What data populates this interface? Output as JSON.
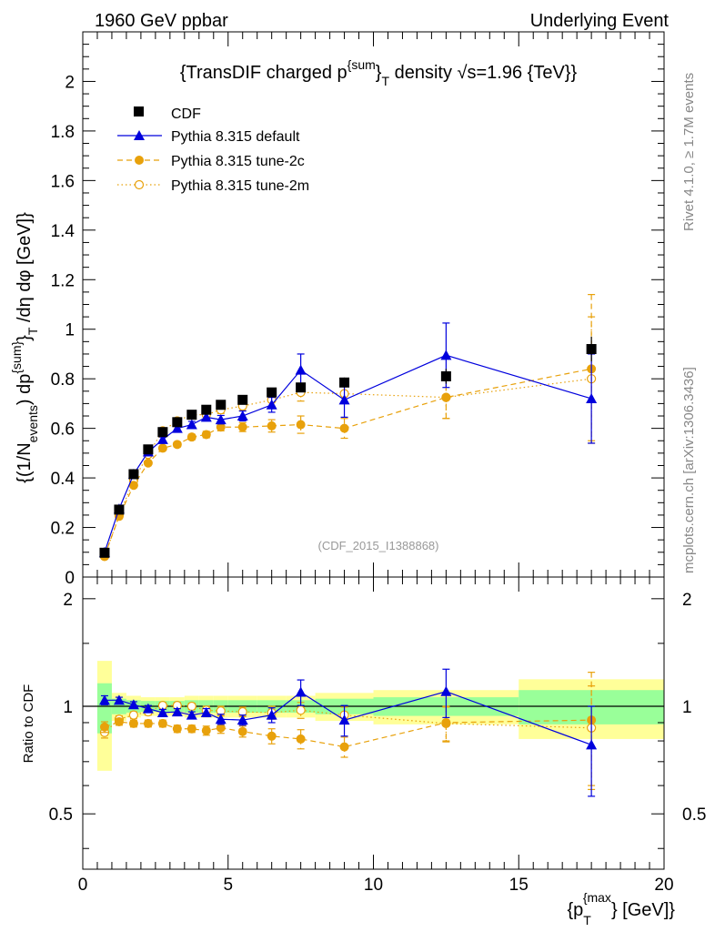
{
  "header": {
    "left": "1960 GeV ppbar",
    "right": "Underlying Event"
  },
  "side_labels": {
    "rivet": "Rivet 4.1.0, ≥ 1.7M events",
    "mcplots": "mcplots.cern.ch [arXiv:1306.3436]"
  },
  "chart_data": [
    {
      "type": "scatter",
      "panel": "main",
      "title": "{TransDIF charged p^{sum}_T density √s=1.96 {TeV}}",
      "title_parts": {
        "pre": "{TransDIF charged p",
        "sup": "{sum",
        "post1": "}",
        "sub": "T",
        "post2": " density √s=1.96 {TeV}}"
      },
      "watermark": "(CDF_2015_I1388868)",
      "ylabel": "{(1/N_events) dp^{sum}_T /dη dφ [GeV]}",
      "ylabel_parts": {
        "a": "{(1/N",
        "a_sub": "events",
        "b": ") dp",
        "b_sup": "{sum}",
        "c": "}",
        "c_sub": "T",
        "d": " /dη  dφ [GeV]}"
      },
      "xlim": [
        0,
        20
      ],
      "ylim": [
        0,
        2.2
      ],
      "yticks": [
        0,
        0.2,
        0.4,
        0.6,
        0.8,
        1,
        1.2,
        1.4,
        1.6,
        1.8,
        2
      ],
      "ytick_labels": [
        "0",
        "0.2",
        "0.4",
        "0.6",
        "0.8",
        "1",
        "1.2",
        "1.4",
        "1.6",
        "1.8",
        "2"
      ],
      "x": [
        0.75,
        1.25,
        1.75,
        2.25,
        2.75,
        3.25,
        3.75,
        4.25,
        4.75,
        5.5,
        6.5,
        7.5,
        9.0,
        12.5,
        17.5
      ],
      "series": [
        {
          "name": "CDF",
          "style": "data",
          "color": "#000000",
          "values": [
            0.098,
            0.272,
            0.415,
            0.515,
            0.585,
            0.625,
            0.655,
            0.675,
            0.695,
            0.715,
            0.745,
            0.765,
            0.785,
            0.81,
            0.92
          ],
          "errors": [
            0.005,
            0.006,
            0.008,
            0.008,
            0.009,
            0.01,
            0.01,
            0.011,
            0.012,
            0.013,
            0.015,
            0.018,
            0.02,
            0.03,
            0.05
          ]
        },
        {
          "name": "Pythia 8.315 default",
          "style": "triangle-solid",
          "color": "#0000dd",
          "values": [
            0.1,
            0.275,
            0.415,
            0.505,
            0.555,
            0.6,
            0.615,
            0.645,
            0.635,
            0.65,
            0.695,
            0.835,
            0.715,
            0.895,
            0.72
          ],
          "errors": [
            0.004,
            0.006,
            0.008,
            0.009,
            0.01,
            0.011,
            0.013,
            0.015,
            0.017,
            0.02,
            0.03,
            0.065,
            0.07,
            0.13,
            0.18
          ]
        },
        {
          "name": "Pythia 8.315 tune-2c",
          "style": "circle-dashed",
          "color": "#e8a10b",
          "values": [
            0.085,
            0.245,
            0.37,
            0.46,
            0.52,
            0.535,
            0.565,
            0.575,
            0.605,
            0.605,
            0.61,
            0.615,
            0.6,
            0.725,
            0.84
          ],
          "errors": [
            0.004,
            0.006,
            0.007,
            0.008,
            0.009,
            0.01,
            0.011,
            0.013,
            0.015,
            0.018,
            0.025,
            0.035,
            0.04,
            0.085,
            0.3
          ]
        },
        {
          "name": "Pythia 8.315 tune-2m",
          "style": "open-circle-dotted",
          "color": "#e8a10b",
          "values": [
            0.083,
            0.25,
            0.39,
            0.495,
            0.59,
            0.63,
            0.655,
            0.655,
            0.675,
            0.69,
            0.715,
            0.745,
            0.74,
            0.725,
            0.8
          ],
          "errors": [
            0.004,
            0.006,
            0.007,
            0.008,
            0.009,
            0.01,
            0.011,
            0.013,
            0.015,
            0.018,
            0.025,
            0.035,
            0.04,
            0.085,
            0.25
          ]
        }
      ],
      "legend": {
        "placement": "top-left",
        "entries": [
          "CDF",
          "Pythia 8.315 default",
          "Pythia 8.315 tune-2c",
          "Pythia 8.315 tune-2m"
        ]
      }
    },
    {
      "type": "scatter",
      "panel": "ratio",
      "ylabel": "Ratio to CDF",
      "xlabel": "{p_T^{max}} [GeV]}",
      "xlabel_parts": {
        "a": "{p",
        "a_sub": "T",
        "a_sup": "{max",
        "b": "} [GeV]}"
      },
      "xlim": [
        0,
        20
      ],
      "ylim": [
        0.35,
        2.3
      ],
      "yscale": "log",
      "xticks": [
        0,
        5,
        10,
        15,
        20
      ],
      "xtick_labels": [
        "0",
        "5",
        "10",
        "15",
        "20"
      ],
      "yticks": [
        0.5,
        1,
        2
      ],
      "ytick_labels": [
        "0.5",
        "1",
        "2"
      ],
      "reference_line": 1,
      "x": [
        0.75,
        1.25,
        1.75,
        2.25,
        2.75,
        3.25,
        3.75,
        4.25,
        4.75,
        5.5,
        6.5,
        7.5,
        9.0,
        12.5,
        17.5
      ],
      "bins": [
        [
          0.5,
          1.0
        ],
        [
          1.0,
          1.5
        ],
        [
          1.5,
          2.0
        ],
        [
          2.0,
          2.5
        ],
        [
          2.5,
          3.0
        ],
        [
          3.0,
          3.5
        ],
        [
          3.5,
          4.0
        ],
        [
          4.0,
          4.5
        ],
        [
          4.5,
          5.0
        ],
        [
          5.0,
          6.0
        ],
        [
          6.0,
          7.0
        ],
        [
          7.0,
          8.0
        ],
        [
          8.0,
          10.0
        ],
        [
          10.0,
          15.0
        ],
        [
          15.0,
          20.0
        ]
      ],
      "band_inner": [
        0.16,
        0.05,
        0.04,
        0.035,
        0.035,
        0.035,
        0.04,
        0.04,
        0.04,
        0.04,
        0.04,
        0.04,
        0.05,
        0.06,
        0.11
      ],
      "band_outer": [
        0.34,
        0.09,
        0.07,
        0.06,
        0.06,
        0.06,
        0.07,
        0.07,
        0.07,
        0.07,
        0.07,
        0.07,
        0.09,
        0.11,
        0.19
      ],
      "series": [
        {
          "name": "Pythia 8.315 default",
          "color": "#0000dd",
          "values": [
            1.04,
            1.04,
            1.01,
            0.985,
            0.96,
            0.965,
            0.945,
            0.96,
            0.92,
            0.915,
            0.945,
            1.095,
            0.915,
            1.1,
            0.78
          ],
          "errors": [
            0.03,
            0.02,
            0.02,
            0.02,
            0.02,
            0.02,
            0.02,
            0.025,
            0.03,
            0.03,
            0.045,
            0.09,
            0.09,
            0.17,
            0.22
          ]
        },
        {
          "name": "Pythia 8.315 tune-2c",
          "color": "#e8a10b",
          "values": [
            0.875,
            0.905,
            0.895,
            0.895,
            0.895,
            0.865,
            0.865,
            0.855,
            0.87,
            0.85,
            0.825,
            0.81,
            0.77,
            0.9,
            0.915
          ],
          "errors": [
            0.03,
            0.02,
            0.02,
            0.02,
            0.02,
            0.02,
            0.02,
            0.025,
            0.03,
            0.03,
            0.04,
            0.05,
            0.05,
            0.1,
            0.33
          ]
        },
        {
          "name": "Pythia 8.315 tune-2m",
          "color": "#e8a10b",
          "values": [
            0.845,
            0.92,
            0.945,
            0.965,
            1.005,
            1.005,
            1.0,
            0.975,
            0.97,
            0.965,
            0.96,
            0.975,
            0.945,
            0.895,
            0.87
          ],
          "errors": [
            0.03,
            0.02,
            0.02,
            0.02,
            0.02,
            0.02,
            0.02,
            0.025,
            0.03,
            0.03,
            0.04,
            0.05,
            0.05,
            0.1,
            0.27
          ]
        }
      ]
    }
  ]
}
